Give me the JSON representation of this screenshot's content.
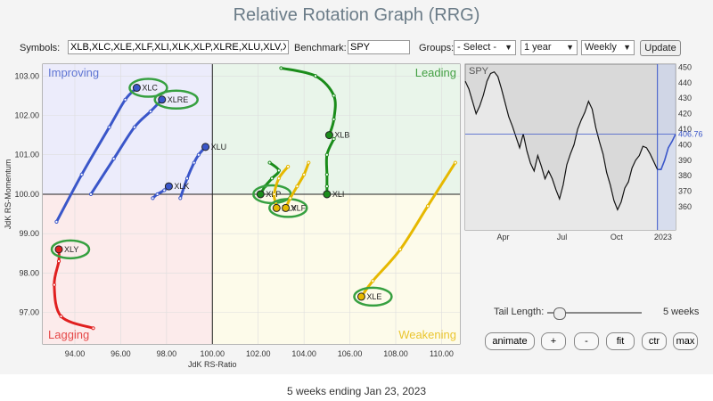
{
  "title": "Relative Rotation Graph (RRG)",
  "controls": {
    "symbols_label": "Symbols:",
    "symbols_value": "XLB,XLC,XLE,XLF,XLI,XLK,XLP,XLRE,XLU,XLV,XL",
    "benchmark_label": "Benchmark:",
    "benchmark_value": "SPY",
    "groups_label": "Groups:",
    "groups_value": "- Select -",
    "period_value": "1 year",
    "freq_value": "Weekly",
    "update_label": "Update"
  },
  "tail": {
    "label": "Tail Length:",
    "value": "5 weeks",
    "fraction": 0.12
  },
  "buttons": [
    "animate",
    "+",
    "-",
    "fit",
    "ctr",
    "max"
  ],
  "footer": "5 weeks ending Jan 23, 2023",
  "colors": {
    "improving": "#3a56c9",
    "leading": "#1a8c1a",
    "weakening": "#e6b800",
    "lagging": "#e02020",
    "highlight": "#36a040"
  },
  "chart_data": [
    {
      "type": "scatter",
      "title": "",
      "xlabel": "JdK RS-Ratio",
      "ylabel": "JdK RS-Momentum",
      "xlim": [
        92.6,
        110.8
      ],
      "ylim": [
        96.2,
        103.3
      ],
      "xticks": [
        94,
        96,
        98,
        100,
        102,
        104,
        106,
        108,
        110
      ],
      "yticks": [
        97,
        98,
        99,
        100,
        101,
        102,
        103
      ],
      "quadrants": [
        "Improving",
        "Leading",
        "Weakening",
        "Lagging"
      ],
      "series": [
        {
          "name": "XLC",
          "color": "#3a56c9",
          "highlight": true,
          "x": [
            93.2,
            94.3,
            95.5,
            96.2,
            96.7
          ],
          "y": [
            99.3,
            100.5,
            101.7,
            102.4,
            102.7
          ]
        },
        {
          "name": "XLRE",
          "color": "#3a56c9",
          "highlight": true,
          "x": [
            94.7,
            95.7,
            96.6,
            97.3,
            97.8
          ],
          "y": [
            100.0,
            100.9,
            101.7,
            102.1,
            102.4
          ]
        },
        {
          "name": "XLU",
          "color": "#3a56c9",
          "highlight": false,
          "x": [
            98.6,
            98.9,
            99.2,
            99.4,
            99.7
          ],
          "y": [
            99.9,
            100.4,
            100.8,
            101.0,
            101.2
          ]
        },
        {
          "name": "XLK",
          "color": "#3a56c9",
          "highlight": false,
          "x": [
            97.4,
            97.6,
            97.9,
            98.0,
            98.1
          ],
          "y": [
            99.9,
            100.0,
            100.1,
            100.15,
            100.2
          ]
        },
        {
          "name": "XLY",
          "color": "#e02020",
          "highlight": true,
          "x": [
            94.8,
            93.4,
            93.1,
            93.3,
            93.3
          ],
          "y": [
            96.6,
            96.9,
            97.7,
            98.3,
            98.6
          ]
        },
        {
          "name": "XLB",
          "color": "#1a8c1a",
          "highlight": false,
          "x": [
            103.0,
            104.5,
            105.3,
            105.3,
            105.1
          ],
          "y": [
            103.2,
            103.0,
            102.5,
            101.9,
            101.5
          ]
        },
        {
          "name": "XLI",
          "color": "#1a8c1a",
          "highlight": false,
          "x": [
            105.3,
            105.0,
            105.0,
            105.0,
            105.0
          ],
          "y": [
            101.4,
            101.0,
            100.5,
            100.2,
            100.0
          ]
        },
        {
          "name": "XLP",
          "color": "#1a8c1a",
          "highlight": true,
          "x": [
            102.5,
            102.9,
            102.6,
            102.3,
            102.1
          ],
          "y": [
            100.8,
            100.6,
            100.4,
            100.2,
            100.0
          ]
        },
        {
          "name": "XLV",
          "color": "#e6b800",
          "highlight": true,
          "x": [
            103.3,
            102.9,
            102.7,
            102.75,
            102.8
          ],
          "y": [
            100.7,
            100.4,
            100.0,
            99.8,
            99.65
          ]
        },
        {
          "name": "XLF",
          "color": "#e6b800",
          "highlight": false,
          "x": [
            104.2,
            104.0,
            103.7,
            103.4,
            103.2
          ],
          "y": [
            100.8,
            100.5,
            100.2,
            99.9,
            99.65
          ]
        },
        {
          "name": "XLE",
          "color": "#e6b800",
          "highlight": true,
          "x": [
            110.6,
            109.4,
            108.2,
            107.0,
            106.5
          ],
          "y": [
            100.8,
            99.7,
            98.6,
            97.8,
            97.4
          ]
        }
      ]
    },
    {
      "type": "line",
      "title": "SPY",
      "ylim": [
        345,
        452
      ],
      "yticks": [
        360,
        370,
        380,
        390,
        400,
        410,
        420,
        430,
        440,
        450
      ],
      "xticks": [
        "Apr",
        "Jul",
        "Oct",
        "2023"
      ],
      "last_value": 406.76,
      "values": [
        441,
        436,
        428,
        420,
        425,
        432,
        441,
        446,
        447,
        444,
        436,
        427,
        418,
        412,
        405,
        398,
        407,
        396,
        388,
        383,
        393,
        386,
        378,
        383,
        378,
        371,
        365,
        374,
        387,
        394,
        400,
        410,
        416,
        421,
        428,
        423,
        411,
        402,
        394,
        382,
        374,
        364,
        358,
        363,
        372,
        376,
        385,
        390,
        393,
        399,
        398,
        394,
        389,
        384,
        384,
        390,
        398,
        402,
        406.76
      ],
      "highlight_from_index": 53
    }
  ]
}
